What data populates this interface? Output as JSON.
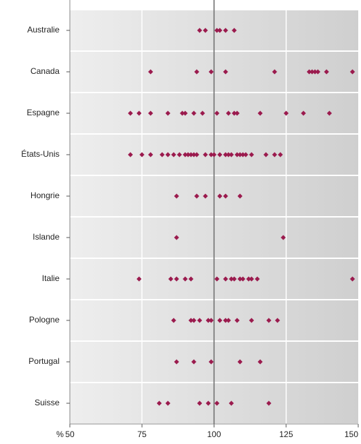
{
  "chart_data": {
    "type": "strip",
    "x_label": "%",
    "categories": [
      "Australie",
      "Canada",
      "Espagne",
      "États-Unis",
      "Hongrie",
      "Islande",
      "Italie",
      "Pologne",
      "Portugal",
      "Suisse"
    ],
    "values": [
      [
        95,
        97,
        101,
        102,
        104,
        107
      ],
      [
        78,
        94,
        99,
        104,
        121,
        133,
        134,
        135,
        136,
        139,
        148
      ],
      [
        71,
        74,
        78,
        84,
        89,
        90,
        93,
        96,
        101,
        105,
        107,
        108,
        116,
        125,
        131,
        140
      ],
      [
        71,
        75,
        78,
        82,
        84,
        86,
        88,
        90,
        91,
        92,
        93,
        94,
        97,
        99,
        100,
        102,
        104,
        105,
        106,
        108,
        109,
        110,
        111,
        113,
        118,
        121,
        123
      ],
      [
        87,
        94,
        97,
        102,
        104,
        109
      ],
      [
        87,
        124
      ],
      [
        74,
        85,
        87,
        90,
        92,
        101,
        104,
        106,
        107,
        109,
        110,
        112,
        113,
        115,
        148
      ],
      [
        86,
        92,
        93,
        95,
        98,
        99,
        102,
        104,
        105,
        108,
        113,
        119,
        122
      ],
      [
        87,
        93,
        99,
        109,
        116
      ],
      [
        81,
        84,
        95,
        98,
        101,
        106,
        119
      ]
    ],
    "color": "#9b1b4e",
    "reference_line": 100,
    "xlim": [
      50,
      150
    ],
    "xticks": [
      50,
      75,
      100,
      125,
      150
    ],
    "grid": true
  }
}
